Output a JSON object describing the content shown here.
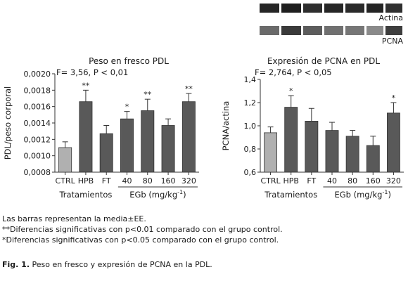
{
  "blot": {
    "actina_label": "Actina",
    "pcna_label": "PCNA"
  },
  "chart_data": [
    {
      "type": "bar",
      "title": "Peso en fresco PDL",
      "stat": "F= 3,56, P < 0,01",
      "ylabel": "PDL/peso corporal",
      "ylim": [
        0.0008,
        0.002
      ],
      "yticks": [
        "0,0008",
        "0,0010",
        "0,0012",
        "0,0014",
        "0,0016",
        "0,0018",
        "0,0020"
      ],
      "categories": [
        "CTRL",
        "HPB",
        "FT",
        "40",
        "80",
        "160",
        "320"
      ],
      "values": [
        0.0011,
        0.00166,
        0.00127,
        0.00145,
        0.00155,
        0.00137,
        0.00166
      ],
      "errors": [
        7e-05,
        0.00014,
        0.0001,
        9e-05,
        0.00014,
        8e-05,
        0.0001
      ],
      "significance": [
        "",
        "**",
        "",
        "*",
        "**",
        "",
        "**"
      ],
      "bar_colors": [
        "#b0b0b0",
        "#595959",
        "#595959",
        "#595959",
        "#595959",
        "#595959",
        "#595959"
      ],
      "group_labels": {
        "left": "Tratamientos",
        "right": "EGb (mg/kg",
        "right_sup": "-1",
        "right_close": ")"
      }
    },
    {
      "type": "bar",
      "title": "Expresión de PCNA en PDL",
      "stat": "F= 2,764, P < 0,05",
      "ylabel": "PCNA/actina",
      "ylim": [
        0.6,
        1.4
      ],
      "yticks": [
        "0,6",
        "0,8",
        "1,0",
        "1,2",
        "1,4"
      ],
      "categories": [
        "CTRL",
        "HPB",
        "FT",
        "40",
        "80",
        "160",
        "320"
      ],
      "values": [
        0.94,
        1.16,
        1.04,
        0.96,
        0.91,
        0.83,
        1.11
      ],
      "errors": [
        0.05,
        0.1,
        0.11,
        0.07,
        0.05,
        0.08,
        0.09
      ],
      "significance": [
        "",
        "*",
        "",
        "",
        "",
        "",
        "*"
      ],
      "bar_colors": [
        "#b0b0b0",
        "#595959",
        "#595959",
        "#595959",
        "#595959",
        "#595959",
        "#595959"
      ],
      "group_labels": {
        "left": "Tratamientos",
        "right": "EGb (mg/kg",
        "right_sup": "-1",
        "right_close": ")"
      }
    }
  ],
  "notes": {
    "line1": "Las barras representan la media±EE.",
    "line2": "**Diferencias significativas con p<0.01 comparado con el grupo control.",
    "line3": "*Diferencias significativas con p<0.05 comparado con el grupo control."
  },
  "figure_caption": {
    "label": "Fig. 1.",
    "text": " Peso en fresco y expresión de PCNA en la PDL."
  }
}
